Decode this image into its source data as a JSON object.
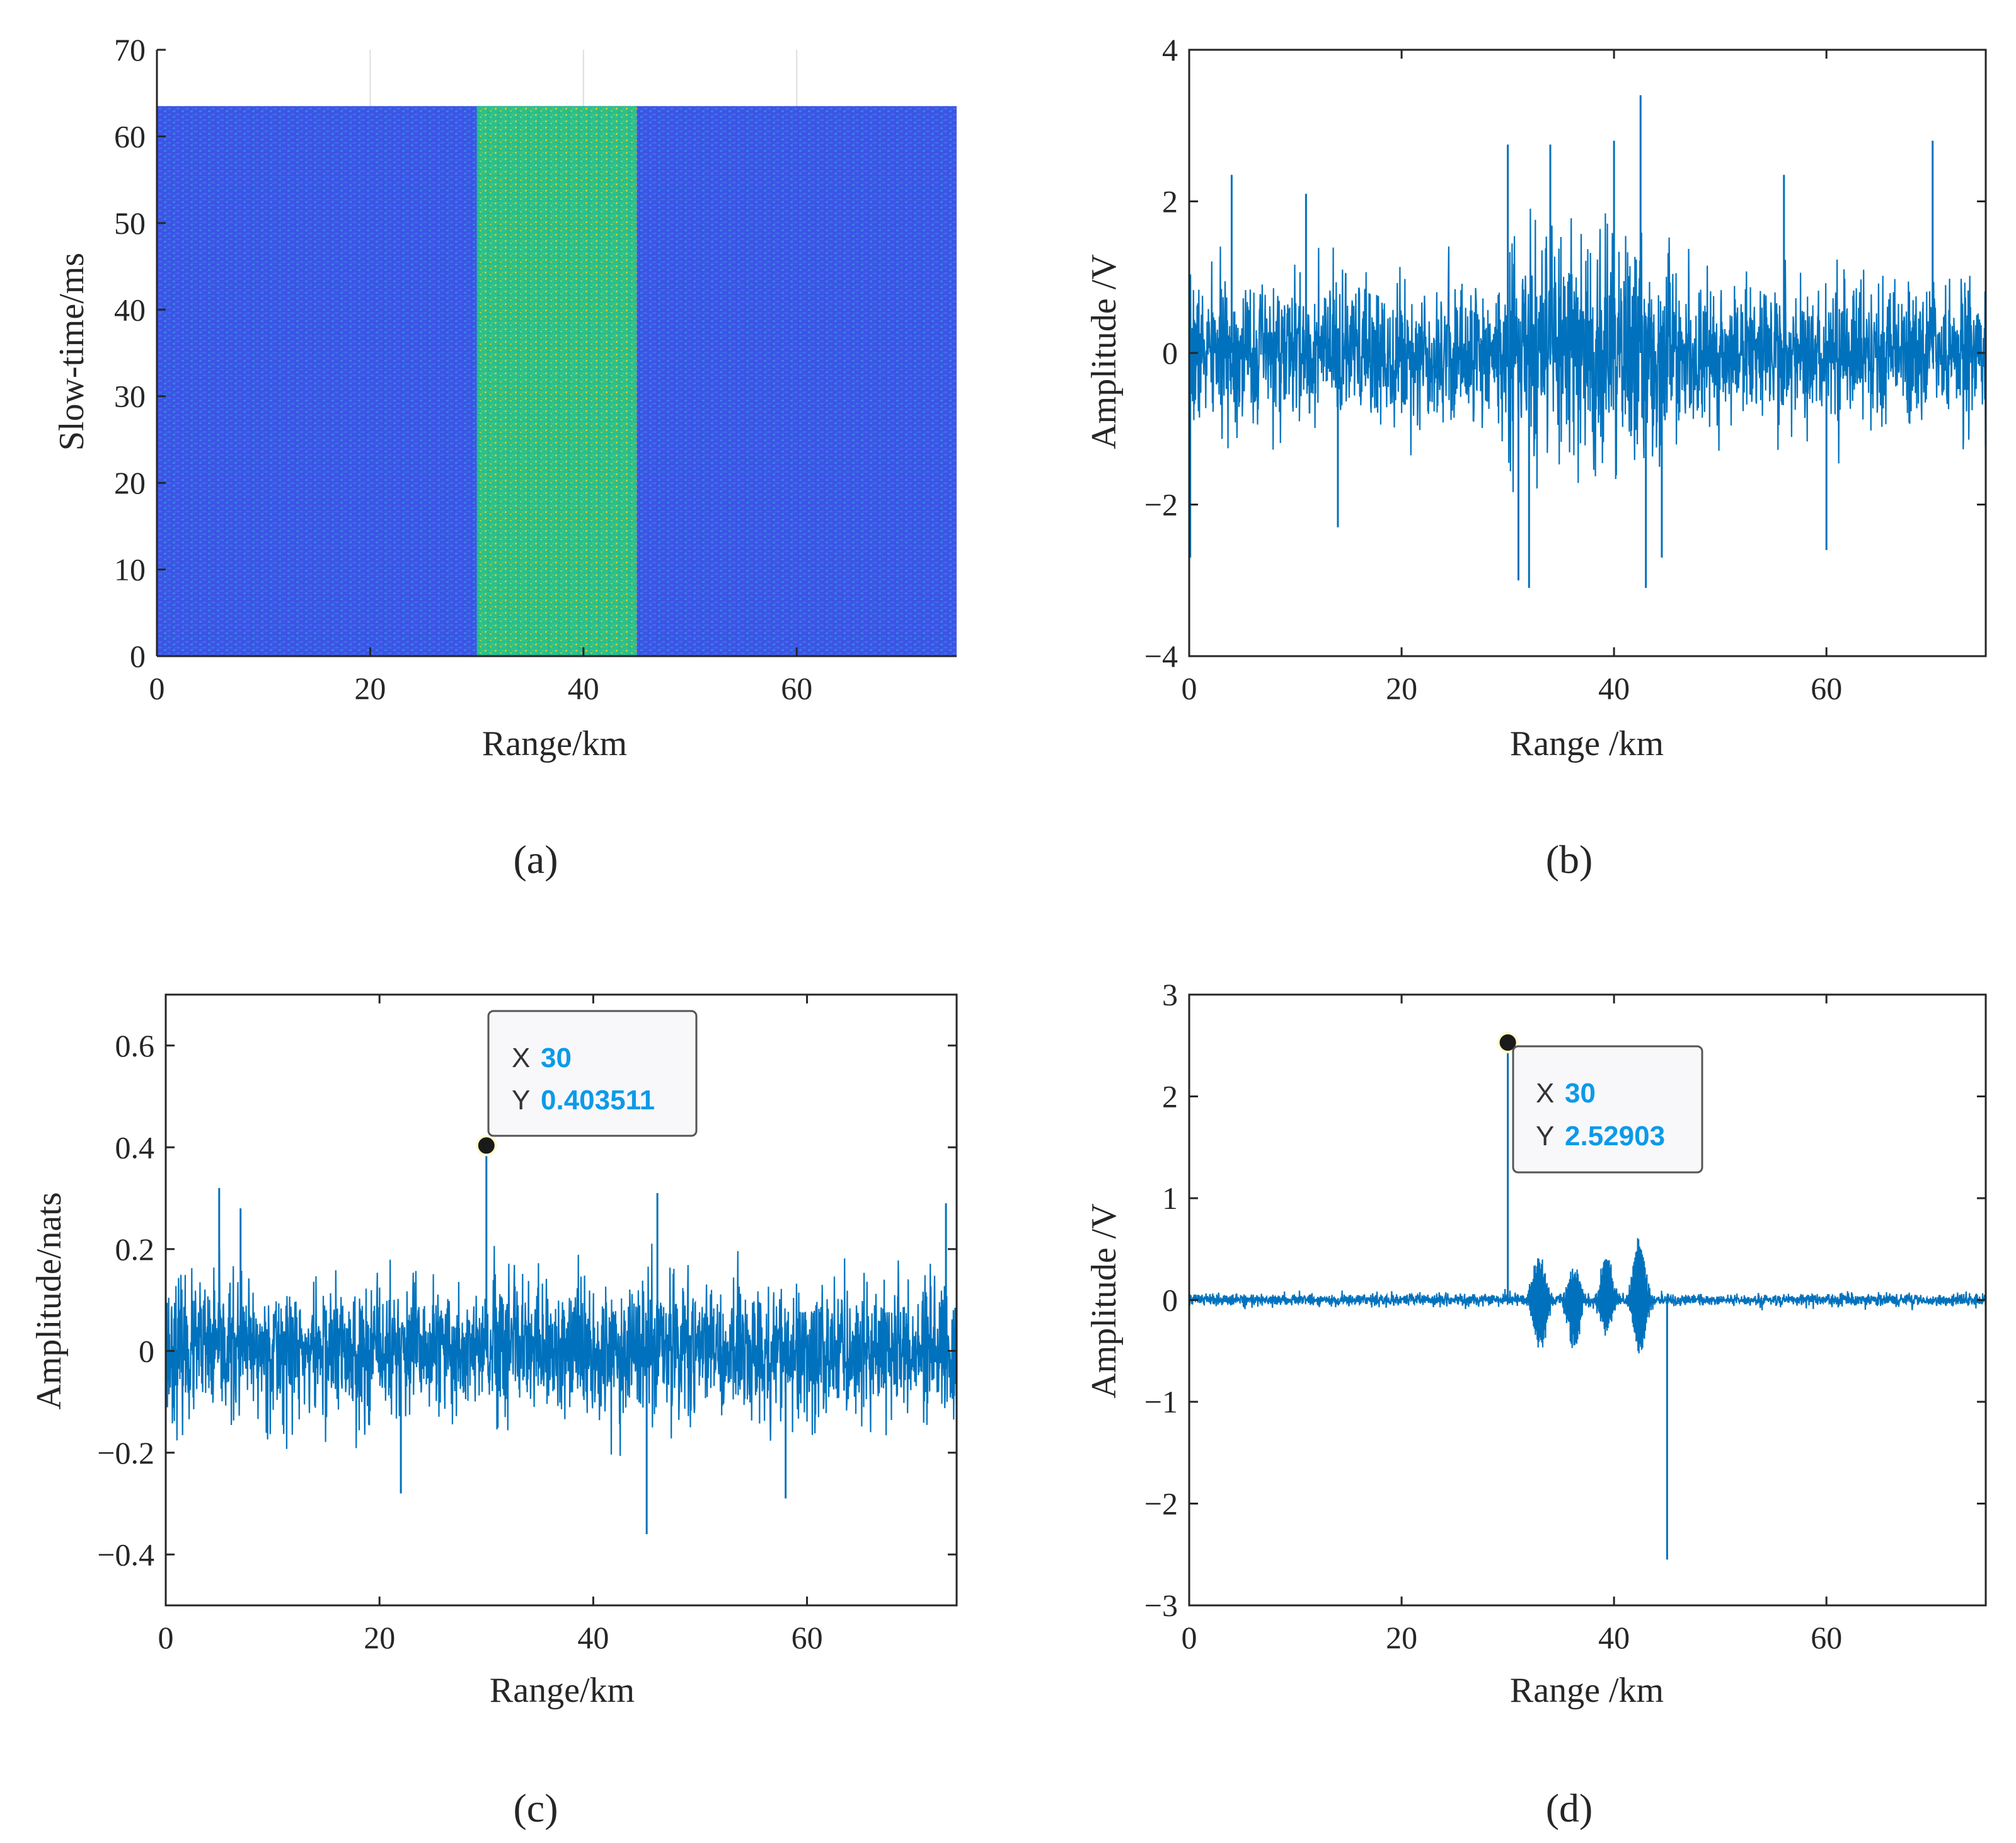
{
  "colors": {
    "trace": "#0072bd",
    "heat_low": "#3a55e6",
    "heat_high": "#2bc08a",
    "heat_accent": "#e3c72a",
    "axis": "#262626",
    "grid": "#dedede",
    "datatip_value": "#0c9ae8"
  },
  "chart_data": [
    {
      "id": "a",
      "type": "heatmap",
      "caption": "(a)",
      "xlabel": "Range/km",
      "ylabel": "Slow-time/ms",
      "xlim": [
        0,
        75
      ],
      "ylim": [
        0,
        70
      ],
      "xticks": [
        0,
        20,
        40,
        60
      ],
      "yticks": [
        0,
        10,
        20,
        30,
        40,
        50,
        60,
        70
      ],
      "data_extent": {
        "x": [
          0,
          75
        ],
        "y": [
          0,
          63.5
        ]
      },
      "grid": true,
      "high_band_km": [
        30,
        45
      ],
      "description": "background noise low amplitude; band 30-45 km high amplitude"
    },
    {
      "id": "b",
      "type": "line",
      "caption": "(b)",
      "xlabel": "Range /km",
      "ylabel": "Amplitude /V",
      "xlim": [
        0,
        75
      ],
      "ylim": [
        -4,
        4
      ],
      "xticks": [
        0,
        20,
        40,
        60
      ],
      "yticks": [
        -4,
        -2,
        0,
        2,
        4
      ],
      "ytick_labels": [
        "−4",
        "−2",
        "0",
        "2",
        "4"
      ],
      "grid": false,
      "envelope": [
        {
          "x": [
            0,
            30
          ],
          "std": 0.45
        },
        {
          "x": [
            30,
            46
          ],
          "std": 0.75
        },
        {
          "x": [
            46,
            75
          ],
          "std": 0.45
        }
      ],
      "spikes": [
        {
          "x": 0.1,
          "y": -2.7
        },
        {
          "x": 4,
          "y": 2.35
        },
        {
          "x": 11,
          "y": 2.1
        },
        {
          "x": 14,
          "y": -2.3
        },
        {
          "x": 30,
          "y": 2.75
        },
        {
          "x": 31,
          "y": -3.0
        },
        {
          "x": 32,
          "y": -3.1
        },
        {
          "x": 34,
          "y": 2.75
        },
        {
          "x": 40,
          "y": 2.8
        },
        {
          "x": 42.5,
          "y": 3.4
        },
        {
          "x": 43,
          "y": -3.1
        },
        {
          "x": 44.5,
          "y": -2.7
        },
        {
          "x": 56,
          "y": 2.35
        },
        {
          "x": 60,
          "y": -2.6
        },
        {
          "x": 70,
          "y": 2.8
        }
      ]
    },
    {
      "id": "c",
      "type": "line",
      "caption": "(c)",
      "xlabel": "Range/km",
      "ylabel": "Amplitude/nats",
      "xlim": [
        0,
        74
      ],
      "ylim": [
        -0.5,
        0.7
      ],
      "xticks": [
        0,
        20,
        40,
        60
      ],
      "yticks": [
        -0.4,
        -0.2,
        0,
        0.2,
        0.4,
        0.6
      ],
      "ytick_labels": [
        "−0.4",
        "−0.2",
        "0",
        "0.2",
        "0.4",
        "0.6"
      ],
      "grid": false,
      "noise_std": 0.065,
      "spikes": [
        {
          "x": 5,
          "y": 0.32
        },
        {
          "x": 7,
          "y": 0.28
        },
        {
          "x": 22,
          "y": -0.28
        },
        {
          "x": 30,
          "y": 0.403511
        },
        {
          "x": 45,
          "y": -0.36
        },
        {
          "x": 46,
          "y": 0.31
        },
        {
          "x": 58,
          "y": -0.29
        },
        {
          "x": 73,
          "y": 0.29
        }
      ],
      "datatip": {
        "x_label": "X",
        "x_value": "30",
        "y_label": "Y",
        "y_value": "0.403511",
        "point": {
          "x": 30,
          "y": 0.403511
        }
      }
    },
    {
      "id": "d",
      "type": "line",
      "caption": "(d)",
      "xlabel": "Range /km",
      "ylabel": "Amplitude /V",
      "xlim": [
        0,
        75
      ],
      "ylim": [
        -3,
        3
      ],
      "xticks": [
        0,
        20,
        40,
        60
      ],
      "yticks": [
        -3,
        -2,
        -1,
        0,
        1,
        2,
        3
      ],
      "ytick_labels": [
        "−3",
        "−2",
        "−1",
        "0",
        "1",
        "2",
        "3"
      ],
      "grid": false,
      "noise_std": 0.03,
      "bursts": [
        {
          "center": 33,
          "amp": 0.55,
          "width": 1.3
        },
        {
          "center": 36.2,
          "amp": 0.5,
          "width": 1.2
        },
        {
          "center": 39.3,
          "amp": 0.48,
          "width": 1.2
        },
        {
          "center": 42.4,
          "amp": 0.7,
          "width": 1.2
        }
      ],
      "spikes": [
        {
          "x": 30,
          "y": 2.52903
        },
        {
          "x": 45,
          "y": -2.55
        }
      ],
      "datatip": {
        "x_label": "X",
        "x_value": "30",
        "y_label": "Y",
        "y_value": "2.52903",
        "point": {
          "x": 30,
          "y": 2.52903
        }
      }
    }
  ]
}
